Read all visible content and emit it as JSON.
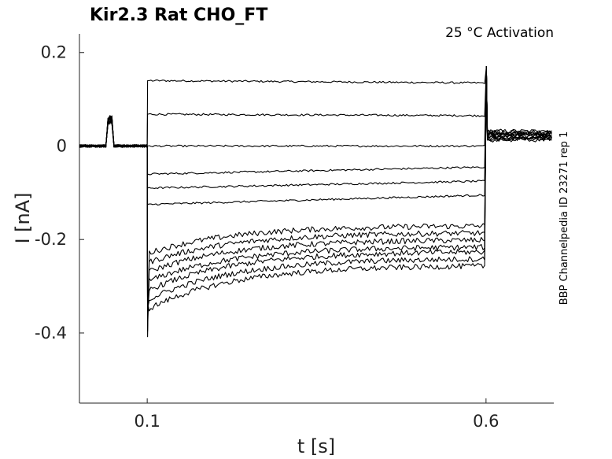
{
  "chart_data": {
    "type": "line",
    "title": "Kir2.3  Rat  CHO_FT",
    "annotation": "25 °C  Activation",
    "side_label": "BBP Channelpedia ID 23271 rep 1",
    "xlabel": "t [s]",
    "ylabel": "I [nA]",
    "xlim": [
      0.0,
      0.7
    ],
    "ylim": [
      -0.55,
      0.24
    ],
    "x_ticks": [
      0.1,
      0.6
    ],
    "x_tick_labels": [
      "0.1",
      "0.6"
    ],
    "y_ticks": [
      0.2,
      0.0,
      -0.2,
      -0.4
    ],
    "y_tick_labels": [
      "0.2",
      "0",
      "-0.2",
      "-0.4"
    ],
    "grid": false,
    "step_start": 0.1,
    "step_end": 0.6,
    "prepulse": [
      0.04,
      0.05
    ],
    "series": [
      {
        "x": [
          0.1,
          0.6
        ],
        "y": [
          0.14,
          0.135
        ]
      },
      {
        "x": [
          0.1,
          0.6
        ],
        "y": [
          0.068,
          0.065
        ]
      },
      {
        "x": [
          0.1,
          0.6
        ],
        "y": [
          0.0,
          0.0
        ]
      },
      {
        "x": [
          0.1,
          0.6
        ],
        "y": [
          -0.06,
          -0.045
        ]
      },
      {
        "x": [
          0.1,
          0.6
        ],
        "y": [
          -0.09,
          -0.075
        ]
      },
      {
        "x": [
          0.1,
          0.6
        ],
        "y": [
          -0.125,
          -0.105
        ]
      },
      {
        "x": [
          0.1,
          0.6
        ],
        "y": [
          -0.2,
          -0.17
        ]
      },
      {
        "x": [
          0.1,
          0.6
        ],
        "y": [
          -0.22,
          -0.185
        ]
      },
      {
        "x": [
          0.1,
          0.6
        ],
        "y": [
          -0.24,
          -0.2
        ]
      },
      {
        "x": [
          0.1,
          0.6
        ],
        "y": [
          -0.26,
          -0.215
        ]
      },
      {
        "x": [
          0.1,
          0.6
        ],
        "y": [
          -0.28,
          -0.225
        ]
      },
      {
        "x": [
          0.1,
          0.6
        ],
        "y": [
          -0.3,
          -0.24
        ]
      },
      {
        "x": [
          0.1,
          0.6
        ],
        "y": [
          -0.32,
          -0.255
        ]
      }
    ]
  }
}
